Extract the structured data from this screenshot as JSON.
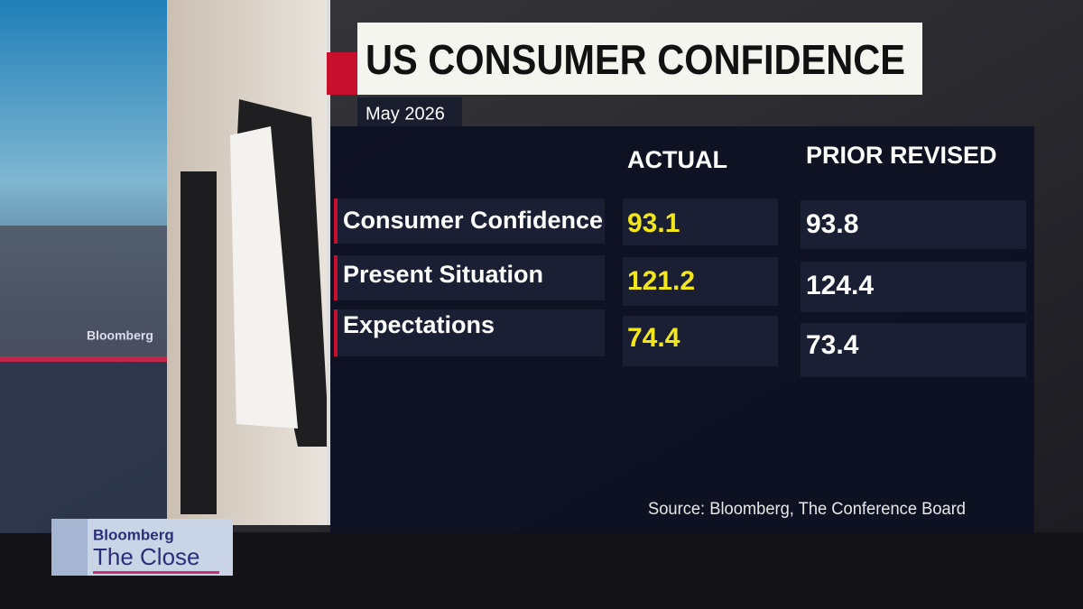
{
  "header": {
    "title": "US CONSUMER CONFIDENCE",
    "subtitle": "May 2026"
  },
  "table": {
    "columns": [
      "ACTUAL",
      "PRIOR REVISED"
    ],
    "rows": [
      [
        "Consumer Confidence",
        93.1,
        93.8
      ],
      [
        "Present Situation",
        121.2,
        124.4
      ],
      [
        "Expectations",
        74.4,
        73.4
      ]
    ]
  },
  "source": "Source: Bloomberg, The Conference Board",
  "background_screen": {
    "label": "Bloomberg"
  },
  "show_logo": {
    "brand": "Bloomberg",
    "title": "The Close"
  }
}
